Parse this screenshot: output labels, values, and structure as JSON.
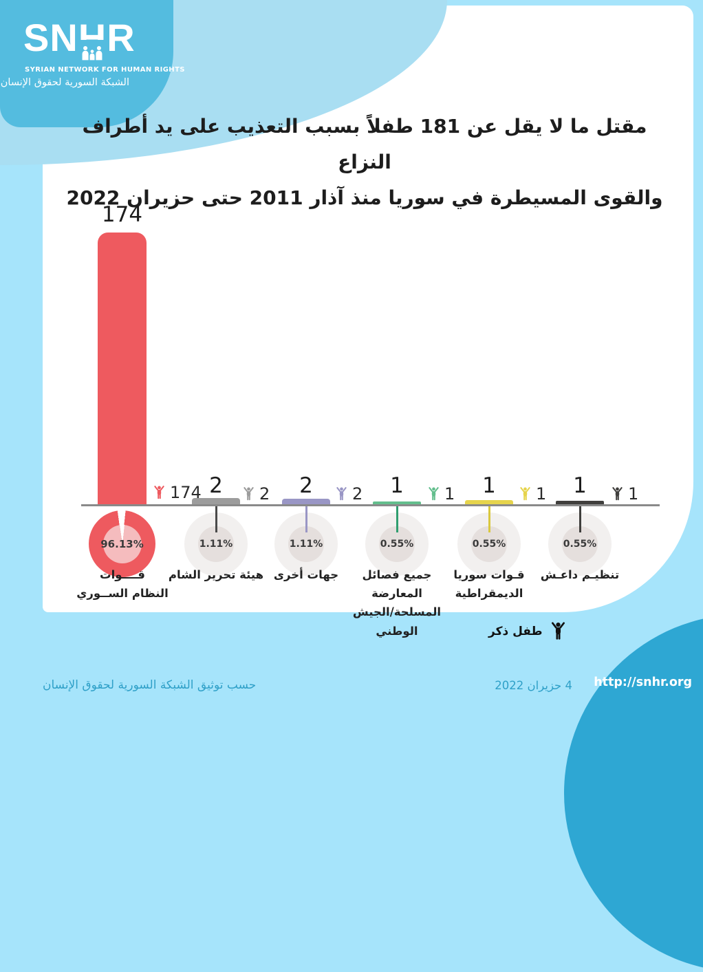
{
  "logo": {
    "acronym": "SNHR",
    "tagline_en": "SYRIAN NETWORK FOR HUMAN RIGHTS",
    "tagline_ar": "الشبكة السورية لحقوق الإنسان"
  },
  "title_line1": "مقتل ما لا يقل عن 181 طفلاً بسبب التعذيب على يد أطراف النزاع",
  "title_line2": "والقوى المسيطرة في سوريا منذ آذار 2011 حتى حزيران 2022",
  "legend": {
    "label": "طفل ذكر"
  },
  "footer": {
    "source": "حسب توثيق الشبكة السورية لحقوق الإنسان",
    "date": "4 حزيران 2022",
    "url": "http://snhr.org"
  },
  "colors": {
    "background": "#A6E4FB",
    "logo_blue": "#54BCDF",
    "swoosh_blue": "#A9DEF2",
    "footer_circle_blue": "#2EA7D3",
    "footer_text": "#2FA0C8",
    "accent_red": "#EE5A5F"
  },
  "chart_data": {
    "type": "bar",
    "orientation": "vertical",
    "title": "مقتل ما لا يقل عن 181 طفلاً بسبب التعذيب على يد أطراف النزاع والقوى المسيطرة في سوريا منذ آذار 2011 حتى حزيران 2022",
    "legend_entry": "طفل ذكر",
    "grid": false,
    "value_axis_visible": false,
    "total_mentioned_in_title": 181,
    "categories": [
      {
        "label": "قوات النظام السوري",
        "label_lines": [
          "قــــوات",
          "النظام الســوري"
        ],
        "value": 174,
        "pct": "96.13%",
        "color": "#EE5A5F"
      },
      {
        "label": "هيئة تحرير الشام",
        "label_lines": [
          "هيئة تحرير الشام",
          ""
        ],
        "value": 2,
        "pct": "1.11%",
        "color": "#9C9C9C"
      },
      {
        "label": "جهات أخرى",
        "label_lines": [
          "جهات أخرى",
          ""
        ],
        "value": 2,
        "pct": "1.11%",
        "color": "#9996C5"
      },
      {
        "label": "جميع فصائل المعارضة المسلحة/الجيش الوطني",
        "label_lines": [
          "جميع فصائل المعارضة",
          "المسلحة/الجيش الوطني"
        ],
        "value": 1,
        "pct": "0.55%",
        "color": "#63BE8D"
      },
      {
        "label": "قوات سوريا الديمقراطية",
        "label_lines": [
          "قـوات سوريا",
          "الديمقراطية"
        ],
        "value": 1,
        "pct": "0.55%",
        "color": "#E6D44C"
      },
      {
        "label": "تنظيم داعش",
        "label_lines": [
          "تنظيـم داعـش",
          ""
        ],
        "value": 1,
        "pct": "0.55%",
        "color": "#403F3D"
      }
    ]
  }
}
